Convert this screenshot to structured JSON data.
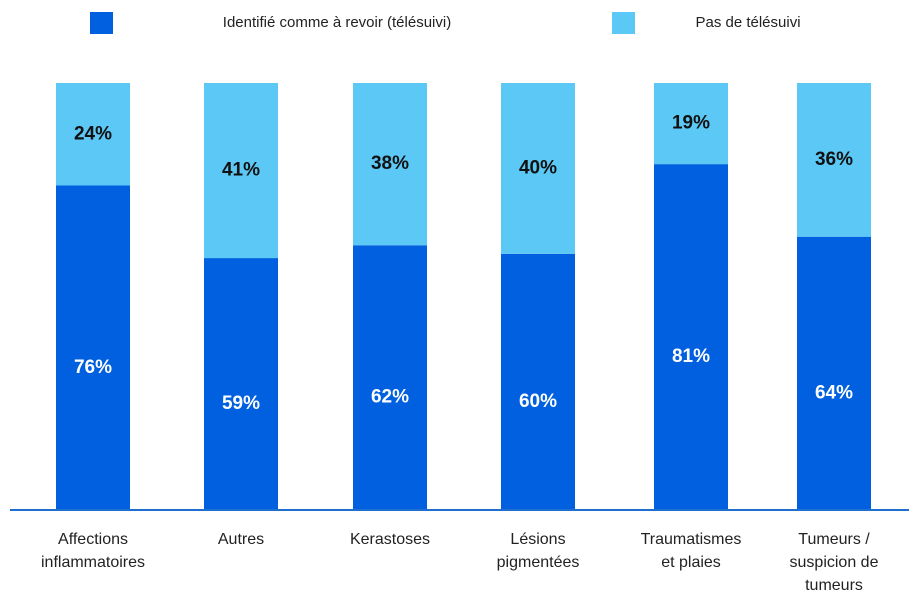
{
  "chart_data": {
    "type": "stacked_bar",
    "categories": [
      [
        "Affections",
        "inflammatoires"
      ],
      [
        "Autres"
      ],
      [
        "Kerastoses"
      ],
      [
        "Lésions",
        "pigmentées"
      ],
      [
        "Traumatismes",
        "et plaies"
      ],
      [
        "Tumeurs /",
        "suspicion de",
        "tumeurs"
      ]
    ],
    "series": [
      {
        "name": "Identifié comme à revoir (télésuivi)",
        "color": "#0060df",
        "values": [
          76,
          59,
          62,
          60,
          81,
          64
        ],
        "value_labels": [
          "76%",
          "59%",
          "62%",
          "60%",
          "81%",
          "64%"
        ]
      },
      {
        "name": "Pas de télésuivi",
        "color": "#5bc8f5",
        "values": [
          24,
          41,
          38,
          40,
          19,
          36
        ],
        "value_labels": [
          "24%",
          "41%",
          "38%",
          "40%",
          "19%",
          "36%"
        ]
      }
    ],
    "ylim": [
      0,
      100
    ],
    "legend": "top"
  }
}
